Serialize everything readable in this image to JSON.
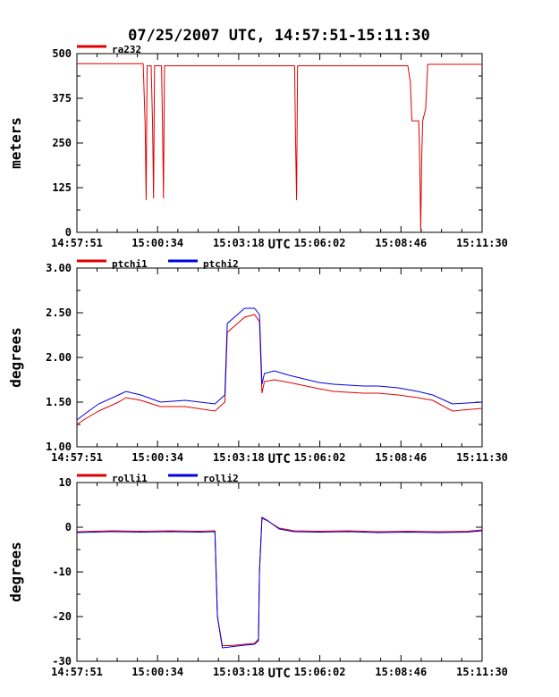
{
  "title": "07/25/2007  UTC, 14:57:51-15:11:30",
  "chart_data": [
    {
      "type": "line",
      "ylabel": "meters",
      "xlabel": "UTC",
      "ylim": [
        0,
        500
      ],
      "yticks": [
        "0",
        "125",
        "250",
        "375",
        "500"
      ],
      "xticks": [
        "14:57:51",
        "15:00:34",
        "15:03:18",
        "15:06:02",
        "15:08:46",
        "15:11:30"
      ],
      "series": [
        {
          "name": "ra232",
          "color": "#e00000",
          "x": [
            "14:57:51",
            "14:59:00",
            "15:00:05",
            "15:00:09",
            "15:00:11",
            "15:00:13",
            "15:00:21",
            "15:00:24",
            "15:00:26",
            "15:00:28",
            "15:00:32",
            "15:00:34",
            "15:00:42",
            "15:00:44",
            "15:00:46",
            "15:00:48",
            "15:02:00",
            "15:04:00",
            "15:05:11",
            "15:05:13",
            "15:05:15",
            "15:05:17",
            "15:05:20",
            "15:08:00",
            "15:09:00",
            "15:09:05",
            "15:09:08",
            "15:09:22",
            "15:09:24",
            "15:09:26",
            "15:09:28",
            "15:09:30",
            "15:09:36",
            "15:09:40",
            "15:09:44",
            "15:10:00",
            "15:11:30"
          ],
          "y": [
            472,
            472,
            472,
            300,
            90,
            466,
            466,
            300,
            95,
            466,
            466,
            466,
            466,
            300,
            95,
            466,
            466,
            466,
            466,
            250,
            90,
            466,
            466,
            466,
            466,
            420,
            312,
            312,
            200,
            5,
            210,
            312,
            345,
            470,
            470,
            470,
            470
          ]
        }
      ]
    },
    {
      "type": "line",
      "ylabel": "degrees",
      "xlabel": "UTC",
      "ylim": [
        1.0,
        3.0
      ],
      "yticks": [
        "1.00",
        "1.50",
        "2.00",
        "2.50",
        "3.00"
      ],
      "xticks": [
        "14:57:51",
        "15:00:34",
        "15:03:18",
        "15:06:02",
        "15:08:46",
        "15:11:30"
      ],
      "series": [
        {
          "name": "ptchi1",
          "color": "#e00000",
          "x": [
            "14:57:51",
            "14:58:10",
            "14:58:35",
            "14:59:15",
            "14:59:30",
            "15:00:00",
            "15:00:40",
            "15:01:30",
            "15:02:30",
            "15:02:50",
            "15:02:55",
            "15:03:30",
            "15:03:50",
            "15:04:00",
            "15:04:05",
            "15:04:10",
            "15:04:30",
            "15:05:00",
            "15:06:00",
            "15:06:30",
            "15:07:30",
            "15:08:00",
            "15:08:40",
            "15:09:20",
            "15:09:50",
            "15:10:30",
            "15:11:30"
          ],
          "y": [
            1.25,
            1.32,
            1.4,
            1.5,
            1.55,
            1.52,
            1.45,
            1.45,
            1.4,
            1.5,
            2.28,
            2.45,
            2.48,
            2.4,
            1.6,
            1.73,
            1.75,
            1.72,
            1.65,
            1.62,
            1.6,
            1.6,
            1.58,
            1.55,
            1.52,
            1.4,
            1.43
          ]
        },
        {
          "name": "ptchi2",
          "color": "#0000e0",
          "x": [
            "14:57:51",
            "14:58:10",
            "14:58:35",
            "14:59:15",
            "14:59:30",
            "15:00:00",
            "15:00:40",
            "15:01:30",
            "15:02:30",
            "15:02:50",
            "15:02:55",
            "15:03:30",
            "15:03:50",
            "15:04:00",
            "15:04:05",
            "15:04:10",
            "15:04:30",
            "15:05:00",
            "15:06:00",
            "15:06:30",
            "15:07:30",
            "15:08:00",
            "15:08:40",
            "15:09:20",
            "15:09:50",
            "15:10:30",
            "15:11:30"
          ],
          "y": [
            1.3,
            1.38,
            1.48,
            1.58,
            1.62,
            1.58,
            1.5,
            1.52,
            1.48,
            1.58,
            2.38,
            2.55,
            2.55,
            2.48,
            1.7,
            1.82,
            1.85,
            1.8,
            1.72,
            1.7,
            1.68,
            1.68,
            1.66,
            1.62,
            1.58,
            1.48,
            1.5
          ]
        }
      ]
    },
    {
      "type": "line",
      "ylabel": "degrees",
      "xlabel": "UTC",
      "ylim": [
        -30,
        10
      ],
      "yticks": [
        "-30",
        "-20",
        "-10",
        "0",
        "10"
      ],
      "xticks": [
        "14:57:51",
        "15:00:34",
        "15:03:18",
        "15:06:02",
        "15:08:46",
        "15:11:30"
      ],
      "series": [
        {
          "name": "rolli1",
          "color": "#e00000",
          "x": [
            "14:57:51",
            "14:59:00",
            "15:00:00",
            "15:01:00",
            "15:02:00",
            "15:02:30",
            "15:02:35",
            "15:02:45",
            "15:03:00",
            "15:03:30",
            "15:03:50",
            "15:03:58",
            "15:04:00",
            "15:04:05",
            "15:04:15",
            "15:04:40",
            "15:05:10",
            "15:06:00",
            "15:07:00",
            "15:08:00",
            "15:09:00",
            "15:10:00",
            "15:11:00",
            "15:11:30"
          ],
          "y": [
            -1.0,
            -0.8,
            -0.9,
            -0.8,
            -0.9,
            -0.8,
            -20,
            -26.5,
            -26.5,
            -26.2,
            -26.0,
            -25.0,
            -10,
            2.0,
            1.5,
            -0.2,
            -0.8,
            -0.9,
            -0.8,
            -1.0,
            -0.9,
            -1.0,
            -0.9,
            -0.6
          ]
        },
        {
          "name": "rolli2",
          "color": "#0000e0",
          "x": [
            "14:57:51",
            "14:59:00",
            "15:00:00",
            "15:01:00",
            "15:02:00",
            "15:02:30",
            "15:02:35",
            "15:02:45",
            "15:03:00",
            "15:03:30",
            "15:03:50",
            "15:03:58",
            "15:04:00",
            "15:04:05",
            "15:04:15",
            "15:04:40",
            "15:05:10",
            "15:06:00",
            "15:07:00",
            "15:08:00",
            "15:09:00",
            "15:10:00",
            "15:11:00",
            "15:11:30"
          ],
          "y": [
            -1.2,
            -1.0,
            -1.1,
            -1.0,
            -1.1,
            -1.0,
            -20,
            -27.0,
            -26.8,
            -26.4,
            -26.2,
            -25.4,
            -10,
            2.2,
            1.6,
            -0.4,
            -1.0,
            -1.1,
            -1.0,
            -1.2,
            -1.1,
            -1.2,
            -1.1,
            -0.8
          ]
        }
      ]
    }
  ]
}
